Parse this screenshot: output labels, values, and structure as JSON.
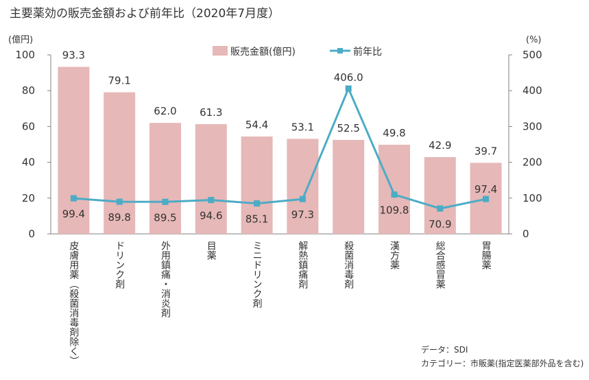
{
  "title": "主要薬効の販売金額および前年比（2020年7月度）",
  "left_unit": "(億円)",
  "right_unit": "(%)",
  "source_line1": "データ：SDI",
  "source_line2": "カテゴリー：市販薬(指定医薬部外品を含む)",
  "colors": {
    "bar": "#e6b8b7",
    "line": "#4bacc6",
    "axis": "#808080"
  },
  "chart_data": {
    "type": "bar",
    "categories": [
      "皮膚用薬（殺菌消毒剤除く）",
      "ドリンク剤",
      "外用鎮痛・消炎剤",
      "目薬",
      "ミニドリンク剤",
      "解熱鎮痛剤",
      "殺菌消毒剤",
      "漢方薬",
      "総合感冒薬",
      "胃腸薬"
    ],
    "series": [
      {
        "name": "販売金額(億円)",
        "type": "bar",
        "axis": "left",
        "values": [
          93.3,
          79.1,
          62.0,
          61.3,
          54.4,
          53.1,
          52.5,
          49.8,
          42.9,
          39.7
        ]
      },
      {
        "name": "前年比",
        "type": "line",
        "axis": "right",
        "values": [
          99.4,
          89.8,
          89.5,
          94.6,
          85.1,
          97.3,
          406.0,
          109.8,
          70.9,
          97.4
        ]
      }
    ],
    "ylim_left": [
      0,
      100
    ],
    "ylim_right": [
      0,
      500
    ],
    "yticks_left": [
      "0",
      "20",
      "40",
      "60",
      "80",
      "100"
    ],
    "yticks_right": [
      "0",
      "100",
      "200",
      "300",
      "400",
      "500"
    ],
    "bar_labels": [
      "93.3",
      "79.1",
      "62.0",
      "61.3",
      "54.4",
      "53.1",
      "52.5",
      "49.8",
      "42.9",
      "39.7"
    ],
    "line_labels": [
      "99.4",
      "89.8",
      "89.5",
      "94.6",
      "85.1",
      "97.3",
      "406.0",
      "109.8",
      "70.9",
      "97.4"
    ],
    "legend_position": "top-center",
    "grid": false
  }
}
